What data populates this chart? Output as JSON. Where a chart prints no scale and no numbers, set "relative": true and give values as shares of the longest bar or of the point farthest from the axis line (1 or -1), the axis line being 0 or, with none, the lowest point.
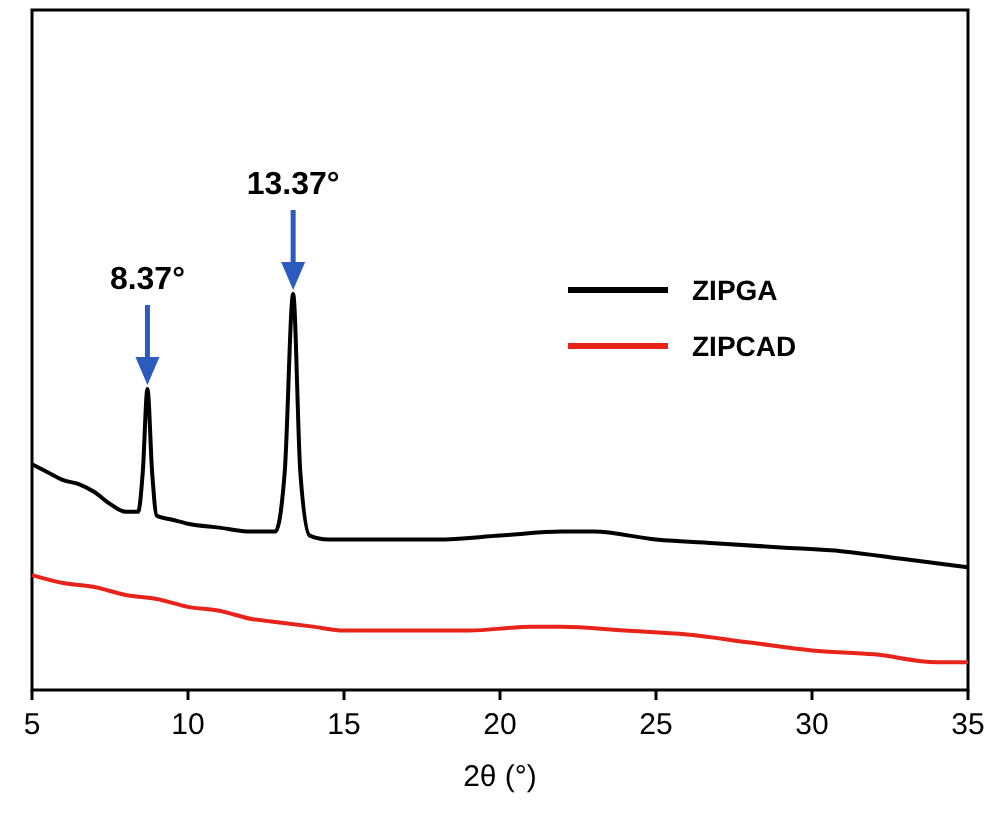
{
  "chart_data": {
    "type": "line",
    "relative": true,
    "xlabel": "2θ (°)",
    "xlim": [
      5,
      35
    ],
    "xticks": [
      5,
      10,
      15,
      20,
      25,
      30,
      35
    ],
    "legend": "top right",
    "tick_labels": "x",
    "series": [
      {
        "name": "ZIPGA",
        "color": "#000000",
        "x": [
          5,
          5.5,
          6,
          6.5,
          7,
          7.5,
          8,
          8.4,
          8.55,
          8.7,
          8.85,
          9,
          9.5,
          10,
          11,
          12,
          12.8,
          13.1,
          13.37,
          13.6,
          13.9,
          14.5,
          16,
          18,
          20,
          22,
          23,
          25,
          27,
          29,
          31,
          33,
          35
        ],
        "values": [
          0.57,
          0.55,
          0.53,
          0.52,
          0.5,
          0.47,
          0.45,
          0.45,
          0.55,
          0.76,
          0.55,
          0.44,
          0.43,
          0.42,
          0.41,
          0.4,
          0.4,
          0.55,
          1,
          0.55,
          0.39,
          0.38,
          0.38,
          0.38,
          0.39,
          0.4,
          0.4,
          0.38,
          0.37,
          0.36,
          0.35,
          0.33,
          0.31
        ]
      },
      {
        "name": "ZIPCAD",
        "color": "#e8231a",
        "x": [
          5,
          6,
          7,
          8,
          9,
          10,
          11,
          12,
          13,
          14,
          15,
          17,
          19,
          21,
          22,
          24,
          26,
          28,
          30,
          32,
          34,
          35
        ],
        "values": [
          0.29,
          0.27,
          0.26,
          0.24,
          0.23,
          0.21,
          0.2,
          0.18,
          0.17,
          0.16,
          0.15,
          0.15,
          0.15,
          0.16,
          0.16,
          0.15,
          0.14,
          0.12,
          0.1,
          0.09,
          0.07,
          0.07
        ]
      }
    ],
    "annotations": [
      {
        "text": "8.37°",
        "x": 8.7,
        "y": 0.76
      },
      {
        "text": "13.37°",
        "x": 13.37,
        "y": 1
      }
    ]
  }
}
